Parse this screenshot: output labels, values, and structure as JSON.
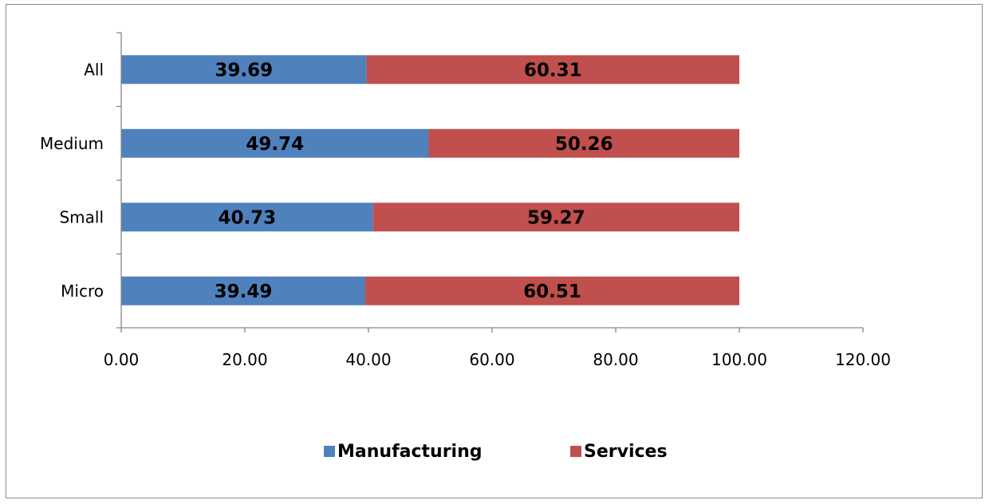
{
  "chart_data": {
    "type": "bar",
    "orientation": "horizontal",
    "stacked": true,
    "categories": [
      "Micro",
      "Small",
      "Medium",
      "All"
    ],
    "series": [
      {
        "name": "Manufacturing",
        "color": "#4f81bd",
        "values": [
          39.49,
          40.73,
          49.74,
          39.69
        ],
        "labels": [
          "39.49",
          "40.73",
          "49.74",
          "39.69"
        ]
      },
      {
        "name": "Services",
        "color": "#c0504d",
        "values": [
          60.51,
          59.27,
          50.26,
          60.31
        ],
        "labels": [
          "60.51",
          "59.27",
          "50.26",
          "60.31"
        ]
      }
    ],
    "xlim": [
      0,
      120
    ],
    "xticks": [
      0,
      20,
      40,
      60,
      80,
      100,
      120
    ],
    "xtick_labels": [
      "0.00",
      "20.00",
      "40.00",
      "60.00",
      "80.00",
      "100.00",
      "120.00"
    ],
    "grid": false,
    "legend": "bottom",
    "title": "",
    "xlabel": "",
    "ylabel": ""
  }
}
